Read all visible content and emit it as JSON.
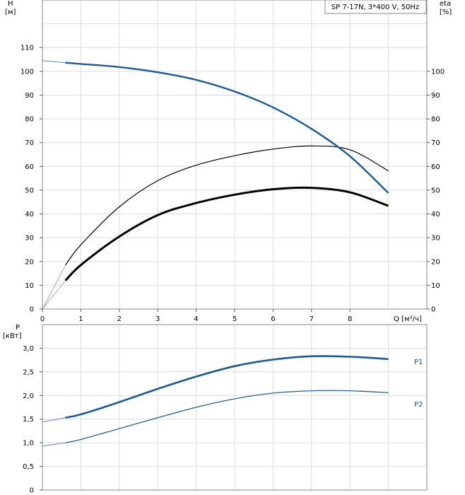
{
  "chart_data": [
    {
      "type": "line",
      "title": "SP 7-17N, 3*400 V, 50Hz",
      "xlabel": "Q [м³/ч]",
      "ylabel_left": [
        "H",
        "[м]"
      ],
      "ylabel_right": [
        "eta",
        "[%]"
      ],
      "xlim": [
        0,
        10
      ],
      "ylim_left": [
        0,
        130
      ],
      "ylim_right": [
        0,
        130
      ],
      "x_ticks": [
        "0",
        "1",
        "2",
        "3",
        "4",
        "5",
        "6",
        "7",
        "8"
      ],
      "y_ticks_left": [
        "0",
        "10",
        "20",
        "30",
        "40",
        "50",
        "60",
        "70",
        "80",
        "90",
        "100",
        "110"
      ],
      "y_ticks_right": [
        "0",
        "10",
        "20",
        "30",
        "40",
        "50",
        "60",
        "70",
        "80",
        "90",
        "100"
      ],
      "grid": true,
      "series": [
        {
          "id": "H",
          "axis": "left",
          "color": "#1c5a96",
          "x": [
            0.6,
            1,
            2,
            3,
            4,
            5,
            6,
            7,
            8,
            9
          ],
          "y": [
            103.6,
            103.1,
            101.8,
            99.6,
            96.4,
            91.5,
            84.8,
            75.8,
            64.3,
            48.8
          ]
        },
        {
          "id": "eta_thin",
          "axis": "right",
          "color": "#000000",
          "x": [
            0.6,
            1,
            2,
            3,
            4,
            5,
            6,
            7,
            8,
            9
          ],
          "y": [
            18.5,
            27,
            43,
            54,
            60.5,
            64.5,
            67.3,
            68.6,
            67,
            58.1
          ]
        },
        {
          "id": "eta_bold",
          "axis": "right",
          "color": "#000000",
          "x": [
            0.6,
            1,
            2,
            3,
            4,
            5,
            6,
            7,
            8,
            9
          ],
          "y": [
            12,
            18.5,
            30.5,
            39.5,
            44.6,
            48.1,
            50.4,
            51,
            49.1,
            43.4
          ]
        }
      ]
    },
    {
      "type": "line",
      "ylabel": [
        "P",
        "[кВт]"
      ],
      "xlim": [
        0,
        10
      ],
      "ylim": [
        0,
        3.5
      ],
      "y_ticks": [
        "0",
        "0,5",
        "1,0",
        "1,5",
        "2,0",
        "2,5",
        "3,0"
      ],
      "grid": true,
      "series": [
        {
          "id": "P1",
          "name": "P1",
          "color": "#1c5a96",
          "x": [
            0.6,
            1,
            2,
            3,
            4,
            5,
            6,
            7,
            8,
            9
          ],
          "y": [
            1.53,
            1.6,
            1.86,
            2.14,
            2.4,
            2.62,
            2.76,
            2.83,
            2.82,
            2.77
          ]
        },
        {
          "id": "P2",
          "name": "P2",
          "color": "#2a5f92",
          "x": [
            0.6,
            1,
            2,
            3,
            4,
            5,
            6,
            7,
            8,
            9
          ],
          "y": [
            1.0,
            1.07,
            1.3,
            1.53,
            1.75,
            1.93,
            2.05,
            2.1,
            2.1,
            2.06
          ]
        }
      ]
    }
  ]
}
